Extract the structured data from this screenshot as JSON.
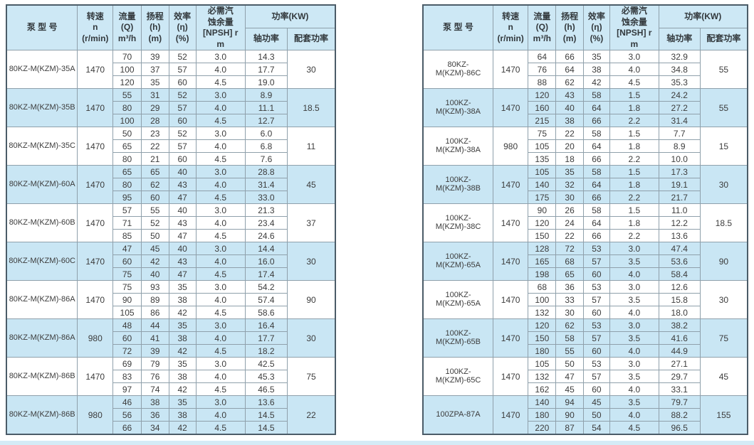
{
  "colors": {
    "highlight_row": "#c9e6f4",
    "header_bg": "#cde8f5",
    "outer_border": "#4b5c68",
    "inner_border": "#8fa0ab",
    "text": "#3c3c3c"
  },
  "header": {
    "model": "泵  型  号",
    "speed": "转速\nn\n(r/min)",
    "flow": "流量\n(Q)\nm³/h",
    "head": "扬程\n(h)\n(m)",
    "efficiency": "效率\n(η)\n(%)",
    "npsh": "必需汽\n蚀余量\n[NPSH] r\nm",
    "power_group": "功率(KW)",
    "shaft_power": "轴功率",
    "matched_power": "配套功率"
  },
  "tables": [
    {
      "id": "left",
      "groups": [
        {
          "model": "80KZ-M(KZM)-35A",
          "speed": "1470",
          "highlighted": false,
          "matched_power": "30",
          "rows": [
            [
              "70",
              "39",
              "52",
              "3.0",
              "14.3"
            ],
            [
              "100",
              "37",
              "57",
              "4.0",
              "17.7"
            ],
            [
              "120",
              "35",
              "60",
              "4.5",
              "19.0"
            ]
          ]
        },
        {
          "model": "80KZ-M(KZM)-35B",
          "speed": "1470",
          "highlighted": true,
          "matched_power": "18.5",
          "rows": [
            [
              "55",
              "31",
              "52",
              "3.0",
              "8.9"
            ],
            [
              "80",
              "29",
              "57",
              "4.0",
              "11.1"
            ],
            [
              "100",
              "28",
              "60",
              "4.5",
              "12.7"
            ]
          ]
        },
        {
          "model": "80KZ-M(KZM)-35C",
          "speed": "1470",
          "highlighted": false,
          "matched_power": "11",
          "rows": [
            [
              "50",
              "23",
              "52",
              "3.0",
              "6.0"
            ],
            [
              "65",
              "22",
              "57",
              "4.0",
              "6.8"
            ],
            [
              "80",
              "21",
              "60",
              "4.5",
              "7.6"
            ]
          ]
        },
        {
          "model": "80KZ-M(KZM)-60A",
          "speed": "1470",
          "highlighted": true,
          "matched_power": "45",
          "rows": [
            [
              "65",
              "65",
              "40",
              "3.0",
              "28.8"
            ],
            [
              "80",
              "62",
              "43",
              "4.0",
              "31.4"
            ],
            [
              "95",
              "60",
              "47",
              "4.5",
              "33.0"
            ]
          ]
        },
        {
          "model": "80KZ-M(KZM)-60B",
          "speed": "1470",
          "highlighted": false,
          "matched_power": "37",
          "rows": [
            [
              "57",
              "55",
              "40",
              "3.0",
              "21.3"
            ],
            [
              "71",
              "52",
              "43",
              "4.0",
              "23.4"
            ],
            [
              "85",
              "50",
              "47",
              "4.5",
              "24.6"
            ]
          ]
        },
        {
          "model": "80KZ-M(KZM)-60C",
          "speed": "1470",
          "highlighted": true,
          "matched_power": "30",
          "rows": [
            [
              "47",
              "45",
              "40",
              "3.0",
              "14.4"
            ],
            [
              "60",
              "42",
              "43",
              "4.0",
              "16.0"
            ],
            [
              "75",
              "40",
              "47",
              "4.5",
              "17.4"
            ]
          ]
        },
        {
          "model": "80KZ-M(KZM)-86A",
          "speed": "1470",
          "highlighted": false,
          "matched_power": "90",
          "rows": [
            [
              "75",
              "93",
              "35",
              "3.0",
              "54.2"
            ],
            [
              "90",
              "89",
              "38",
              "4.0",
              "57.4"
            ],
            [
              "105",
              "86",
              "42",
              "4.5",
              "58.6"
            ]
          ]
        },
        {
          "model": "80KZ-M(KZM)-86A",
          "speed": "980",
          "highlighted": true,
          "matched_power": "30",
          "rows": [
            [
              "48",
              "44",
              "35",
              "3.0",
              "16.4"
            ],
            [
              "60",
              "41",
              "38",
              "4.0",
              "17.7"
            ],
            [
              "72",
              "39",
              "42",
              "4.5",
              "18.2"
            ]
          ]
        },
        {
          "model": "80KZ-M(KZM)-86B",
          "speed": "1470",
          "highlighted": false,
          "matched_power": "75",
          "rows": [
            [
              "69",
              "79",
              "35",
              "3.0",
              "42.5"
            ],
            [
              "83",
              "76",
              "38",
              "4.0",
              "45.3"
            ],
            [
              "97",
              "74",
              "42",
              "4.5",
              "46.5"
            ]
          ]
        },
        {
          "model": "80KZ-M(KZM)-86B",
          "speed": "980",
          "highlighted": true,
          "matched_power": "22",
          "rows": [
            [
              "46",
              "38",
              "35",
              "3.0",
              "13.6"
            ],
            [
              "56",
              "36",
              "38",
              "4.0",
              "14.5"
            ],
            [
              "66",
              "34",
              "42",
              "4.5",
              "14.5"
            ]
          ]
        }
      ]
    },
    {
      "id": "right",
      "groups": [
        {
          "model": "80KZ-M(KZM)-86C",
          "speed": "1470",
          "highlighted": false,
          "matched_power": "55",
          "rows": [
            [
              "64",
              "66",
              "35",
              "3.0",
              "32.9"
            ],
            [
              "76",
              "64",
              "38",
              "4.0",
              "34.8"
            ],
            [
              "88",
              "62",
              "42",
              "4.5",
              "35.3"
            ]
          ]
        },
        {
          "model": "100KZ-M(KZM)-38A",
          "speed": "1470",
          "highlighted": true,
          "matched_power": "55",
          "rows": [
            [
              "120",
              "43",
              "58",
              "1.5",
              "24.2"
            ],
            [
              "160",
              "40",
              "64",
              "1.8",
              "27.2"
            ],
            [
              "215",
              "38",
              "66",
              "2.2",
              "31.4"
            ]
          ]
        },
        {
          "model": "100KZ-M(KZM)-38A",
          "speed": "980",
          "highlighted": false,
          "matched_power": "15",
          "rows": [
            [
              "75",
              "22",
              "58",
              "1.5",
              "7.7"
            ],
            [
              "105",
              "20",
              "64",
              "1.8",
              "8.9"
            ],
            [
              "135",
              "18",
              "66",
              "2.2",
              "10.0"
            ]
          ]
        },
        {
          "model": "100KZ-M(KZM)-38B",
          "speed": "1470",
          "highlighted": true,
          "matched_power": "30",
          "rows": [
            [
              "105",
              "35",
              "58",
              "1.5",
              "17.3"
            ],
            [
              "140",
              "32",
              "64",
              "1.8",
              "19.1"
            ],
            [
              "175",
              "30",
              "66",
              "2.2",
              "21.7"
            ]
          ]
        },
        {
          "model": "100KZ-M(KZM)-38C",
          "speed": "1470",
          "highlighted": false,
          "matched_power": "18.5",
          "rows": [
            [
              "90",
              "26",
              "58",
              "1.5",
              "11.0"
            ],
            [
              "120",
              "24",
              "64",
              "1.8",
              "12.2"
            ],
            [
              "150",
              "22",
              "66",
              "2.2",
              "13.6"
            ]
          ]
        },
        {
          "model": "100KZ-M(KZM)-65A",
          "speed": "1470",
          "highlighted": true,
          "matched_power": "90",
          "rows": [
            [
              "128",
              "72",
              "53",
              "3.0",
              "47.4"
            ],
            [
              "165",
              "68",
              "57",
              "3.5",
              "53.6"
            ],
            [
              "198",
              "65",
              "60",
              "4.0",
              "58.4"
            ]
          ]
        },
        {
          "model": "100KZ-M(KZM)-65A",
          "speed": "1470",
          "highlighted": false,
          "matched_power": "30",
          "rows": [
            [
              "68",
              "36",
              "53",
              "3.0",
              "12.6"
            ],
            [
              "100",
              "33",
              "57",
              "3.5",
              "15.8"
            ],
            [
              "132",
              "30",
              "60",
              "4.0",
              "18.0"
            ]
          ]
        },
        {
          "model": "100KZ-M(KZM)-65B",
          "speed": "1470",
          "highlighted": true,
          "matched_power": "75",
          "rows": [
            [
              "120",
              "62",
              "53",
              "3.0",
              "38.2"
            ],
            [
              "150",
              "58",
              "57",
              "3.5",
              "41.6"
            ],
            [
              "180",
              "55",
              "60",
              "4.0",
              "44.9"
            ]
          ]
        },
        {
          "model": "100KZ-M(KZM)-65C",
          "speed": "1470",
          "highlighted": false,
          "matched_power": "45",
          "rows": [
            [
              "105",
              "50",
              "53",
              "3.0",
              "27.1"
            ],
            [
              "132",
              "47",
              "57",
              "3.5",
              "29.7"
            ],
            [
              "162",
              "45",
              "60",
              "4.0",
              "33.1"
            ]
          ]
        },
        {
          "model": "100ZPA-87A",
          "speed": "1470",
          "highlighted": true,
          "matched_power": "155",
          "rows": [
            [
              "140",
              "94",
              "45",
              "3.5",
              "79.7"
            ],
            [
              "180",
              "90",
              "50",
              "4.0",
              "88.2"
            ],
            [
              "220",
              "87",
              "54",
              "4.5",
              "96.5"
            ]
          ]
        }
      ]
    }
  ]
}
